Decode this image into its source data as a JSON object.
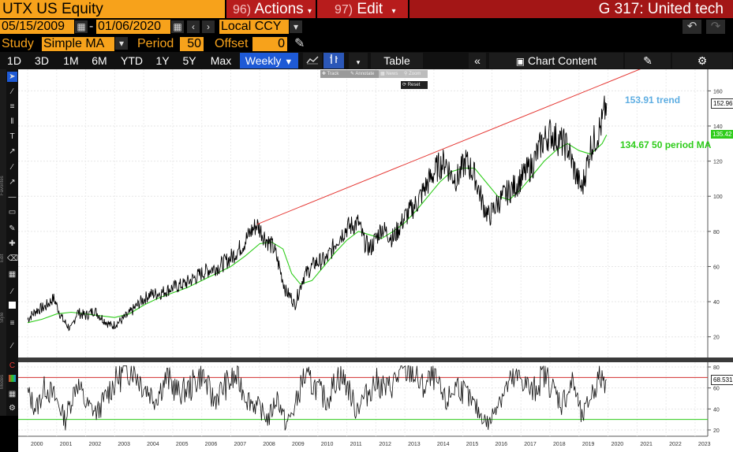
{
  "header": {
    "ticker": "UTX US Equity",
    "actions_num": "96)",
    "actions_label": "Actions",
    "edit_num": "97)",
    "edit_label": "Edit",
    "title": "G 317: United tech"
  },
  "range": {
    "start_date": "05/15/2009",
    "dash": "-",
    "end_date": "01/06/2020",
    "currency": "Local CCY"
  },
  "study": {
    "study_label": "Study",
    "study_value": "Simple MA",
    "period_label": "Period",
    "period_value": "50",
    "offset_label": "Offset",
    "offset_value": "0"
  },
  "periods": [
    "1D",
    "3D",
    "1M",
    "6M",
    "YTD",
    "1Y",
    "5Y",
    "Max"
  ],
  "frequency": "Weekly",
  "table_label": "Table",
  "chart_content_label": "Chart Content",
  "popup": {
    "track": "Track",
    "annotate": "Annotate",
    "news": "News",
    "zoom": "Zoom",
    "reset": "Reset"
  },
  "side_labels": {
    "favorites": "Favorites",
    "edit": "Edit",
    "style": "Style",
    "modes": "Modes"
  },
  "colors": {
    "orange": "#f7a21b",
    "price": "#000000",
    "ma": "#2ecc1a",
    "trend": "#e53935",
    "trend_label": "#5dade2",
    "rsi_upper": "#d32f2f",
    "rsi_lower": "#2ecc1a"
  },
  "chart_data": {
    "type": "line",
    "title": "",
    "x_ticks": [
      "2000",
      "2001",
      "2002",
      "2003",
      "2004",
      "2005",
      "2006",
      "2007",
      "2008",
      "2009",
      "2010",
      "2011",
      "2012",
      "2013",
      "2014",
      "2015",
      "2016",
      "2017",
      "2018",
      "2019",
      "2020",
      "2021",
      "2022",
      "2023"
    ],
    "price_axis": {
      "ticks": [
        20,
        40,
        60,
        80,
        100,
        120,
        140,
        160
      ],
      "ylim": [
        10,
        166
      ]
    },
    "rsi_axis": {
      "ticks": [
        20,
        40,
        60,
        80
      ],
      "ylim": [
        17,
        83
      ],
      "upper_line": 70,
      "lower_line": 30
    },
    "price_series": {
      "name": "",
      "x": [
        2000.0,
        2000.3,
        2000.6,
        2000.9,
        2001.2,
        2001.5,
        2001.7,
        2001.85,
        2002.0,
        2002.3,
        2002.6,
        2002.9,
        2003.2,
        2003.5,
        2003.9,
        2004.2,
        2004.6,
        2005.0,
        2005.4,
        2005.8,
        2006.2,
        2006.6,
        2007.0,
        2007.4,
        2007.7,
        2007.9,
        2008.2,
        2008.5,
        2008.7,
        2008.9,
        2009.1,
        2009.2,
        2009.5,
        2009.9,
        2010.3,
        2010.7,
        2011.0,
        2011.4,
        2011.6,
        2011.8,
        2012.2,
        2012.6,
        2013.0,
        2013.4,
        2013.8,
        2014.1,
        2014.4,
        2014.6,
        2014.8,
        2015.1,
        2015.4,
        2015.7,
        2015.9,
        2016.1,
        2016.4,
        2016.8,
        2017.1,
        2017.4,
        2017.7,
        2018.0,
        2018.3,
        2018.6,
        2018.9,
        2019.1,
        2019.4,
        2019.6,
        2019.8,
        2019.95
      ],
      "values": [
        30,
        35,
        37,
        42,
        30,
        24,
        34,
        33,
        32,
        35,
        30,
        26,
        29,
        33,
        40,
        44,
        45,
        48,
        50,
        54,
        58,
        60,
        65,
        72,
        80,
        84,
        76,
        70,
        58,
        46,
        42,
        38,
        54,
        62,
        64,
        76,
        82,
        85,
        74,
        70,
        82,
        76,
        88,
        96,
        108,
        116,
        120,
        112,
        110,
        120,
        112,
        95,
        88,
        94,
        100,
        106,
        112,
        118,
        130,
        136,
        132,
        128,
        112,
        104,
        128,
        134,
        142,
        153
      ]
    },
    "ma_series": {
      "name": "",
      "x": [
        2000.0,
        2000.5,
        2001.0,
        2001.5,
        2002.0,
        2002.5,
        2003.0,
        2003.5,
        2004.0,
        2004.5,
        2005.0,
        2005.5,
        2006.0,
        2006.5,
        2007.0,
        2007.5,
        2008.0,
        2008.4,
        2008.8,
        2009.1,
        2009.4,
        2009.8,
        2010.2,
        2010.6,
        2011.0,
        2011.4,
        2011.8,
        2012.2,
        2012.6,
        2013.0,
        2013.4,
        2013.8,
        2014.2,
        2014.6,
        2015.0,
        2015.4,
        2015.8,
        2016.2,
        2016.6,
        2017.0,
        2017.4,
        2017.8,
        2018.2,
        2018.6,
        2019.0,
        2019.4,
        2019.8,
        2019.95
      ],
      "values": [
        28,
        30,
        33,
        34,
        33,
        32,
        31,
        33,
        38,
        42,
        45,
        48,
        52,
        56,
        60,
        66,
        73,
        74,
        70,
        56,
        50,
        52,
        60,
        68,
        75,
        80,
        78,
        76,
        80,
        85,
        92,
        100,
        108,
        114,
        116,
        116,
        108,
        100,
        98,
        104,
        112,
        120,
        126,
        130,
        126,
        124,
        130,
        135
      ]
    },
    "trend_series": {
      "name": "",
      "x": [
        2007.9,
        2021.2
      ],
      "values": [
        84,
        173
      ]
    },
    "rsi_series": {
      "name": "",
      "x": [
        2000.0,
        2000.3,
        2000.6,
        2001.0,
        2001.3,
        2001.7,
        2002.0,
        2002.4,
        2002.8,
        2003.2,
        2003.6,
        2004.0,
        2004.4,
        2004.8,
        2005.2,
        2005.6,
        2006.0,
        2006.4,
        2006.8,
        2007.2,
        2007.6,
        2008.0,
        2008.3,
        2008.6,
        2008.9,
        2009.2,
        2009.5,
        2009.9,
        2010.3,
        2010.7,
        2011.0,
        2011.3,
        2011.7,
        2012.0,
        2012.4,
        2012.8,
        2013.2,
        2013.6,
        2014.0,
        2014.4,
        2014.8,
        2015.2,
        2015.6,
        2015.9,
        2016.2,
        2016.6,
        2017.0,
        2017.4,
        2017.8,
        2018.1,
        2018.4,
        2018.8,
        2019.1,
        2019.4,
        2019.7,
        2019.95
      ],
      "values": [
        55,
        40,
        62,
        48,
        30,
        66,
        45,
        36,
        58,
        72,
        80,
        62,
        50,
        70,
        55,
        60,
        74,
        48,
        62,
        70,
        50,
        40,
        30,
        52,
        25,
        40,
        70,
        62,
        48,
        72,
        64,
        40,
        55,
        66,
        58,
        72,
        78,
        60,
        70,
        45,
        64,
        50,
        35,
        25,
        48,
        64,
        70,
        55,
        74,
        60,
        45,
        66,
        30,
        52,
        70,
        68
      ]
    },
    "annotations": {
      "trend_label": "153.91 trend",
      "ma_label": "134.67 50 period MA",
      "last_price": "152.96",
      "last_ma": "135.42",
      "last_rsi": "68.5318"
    }
  }
}
